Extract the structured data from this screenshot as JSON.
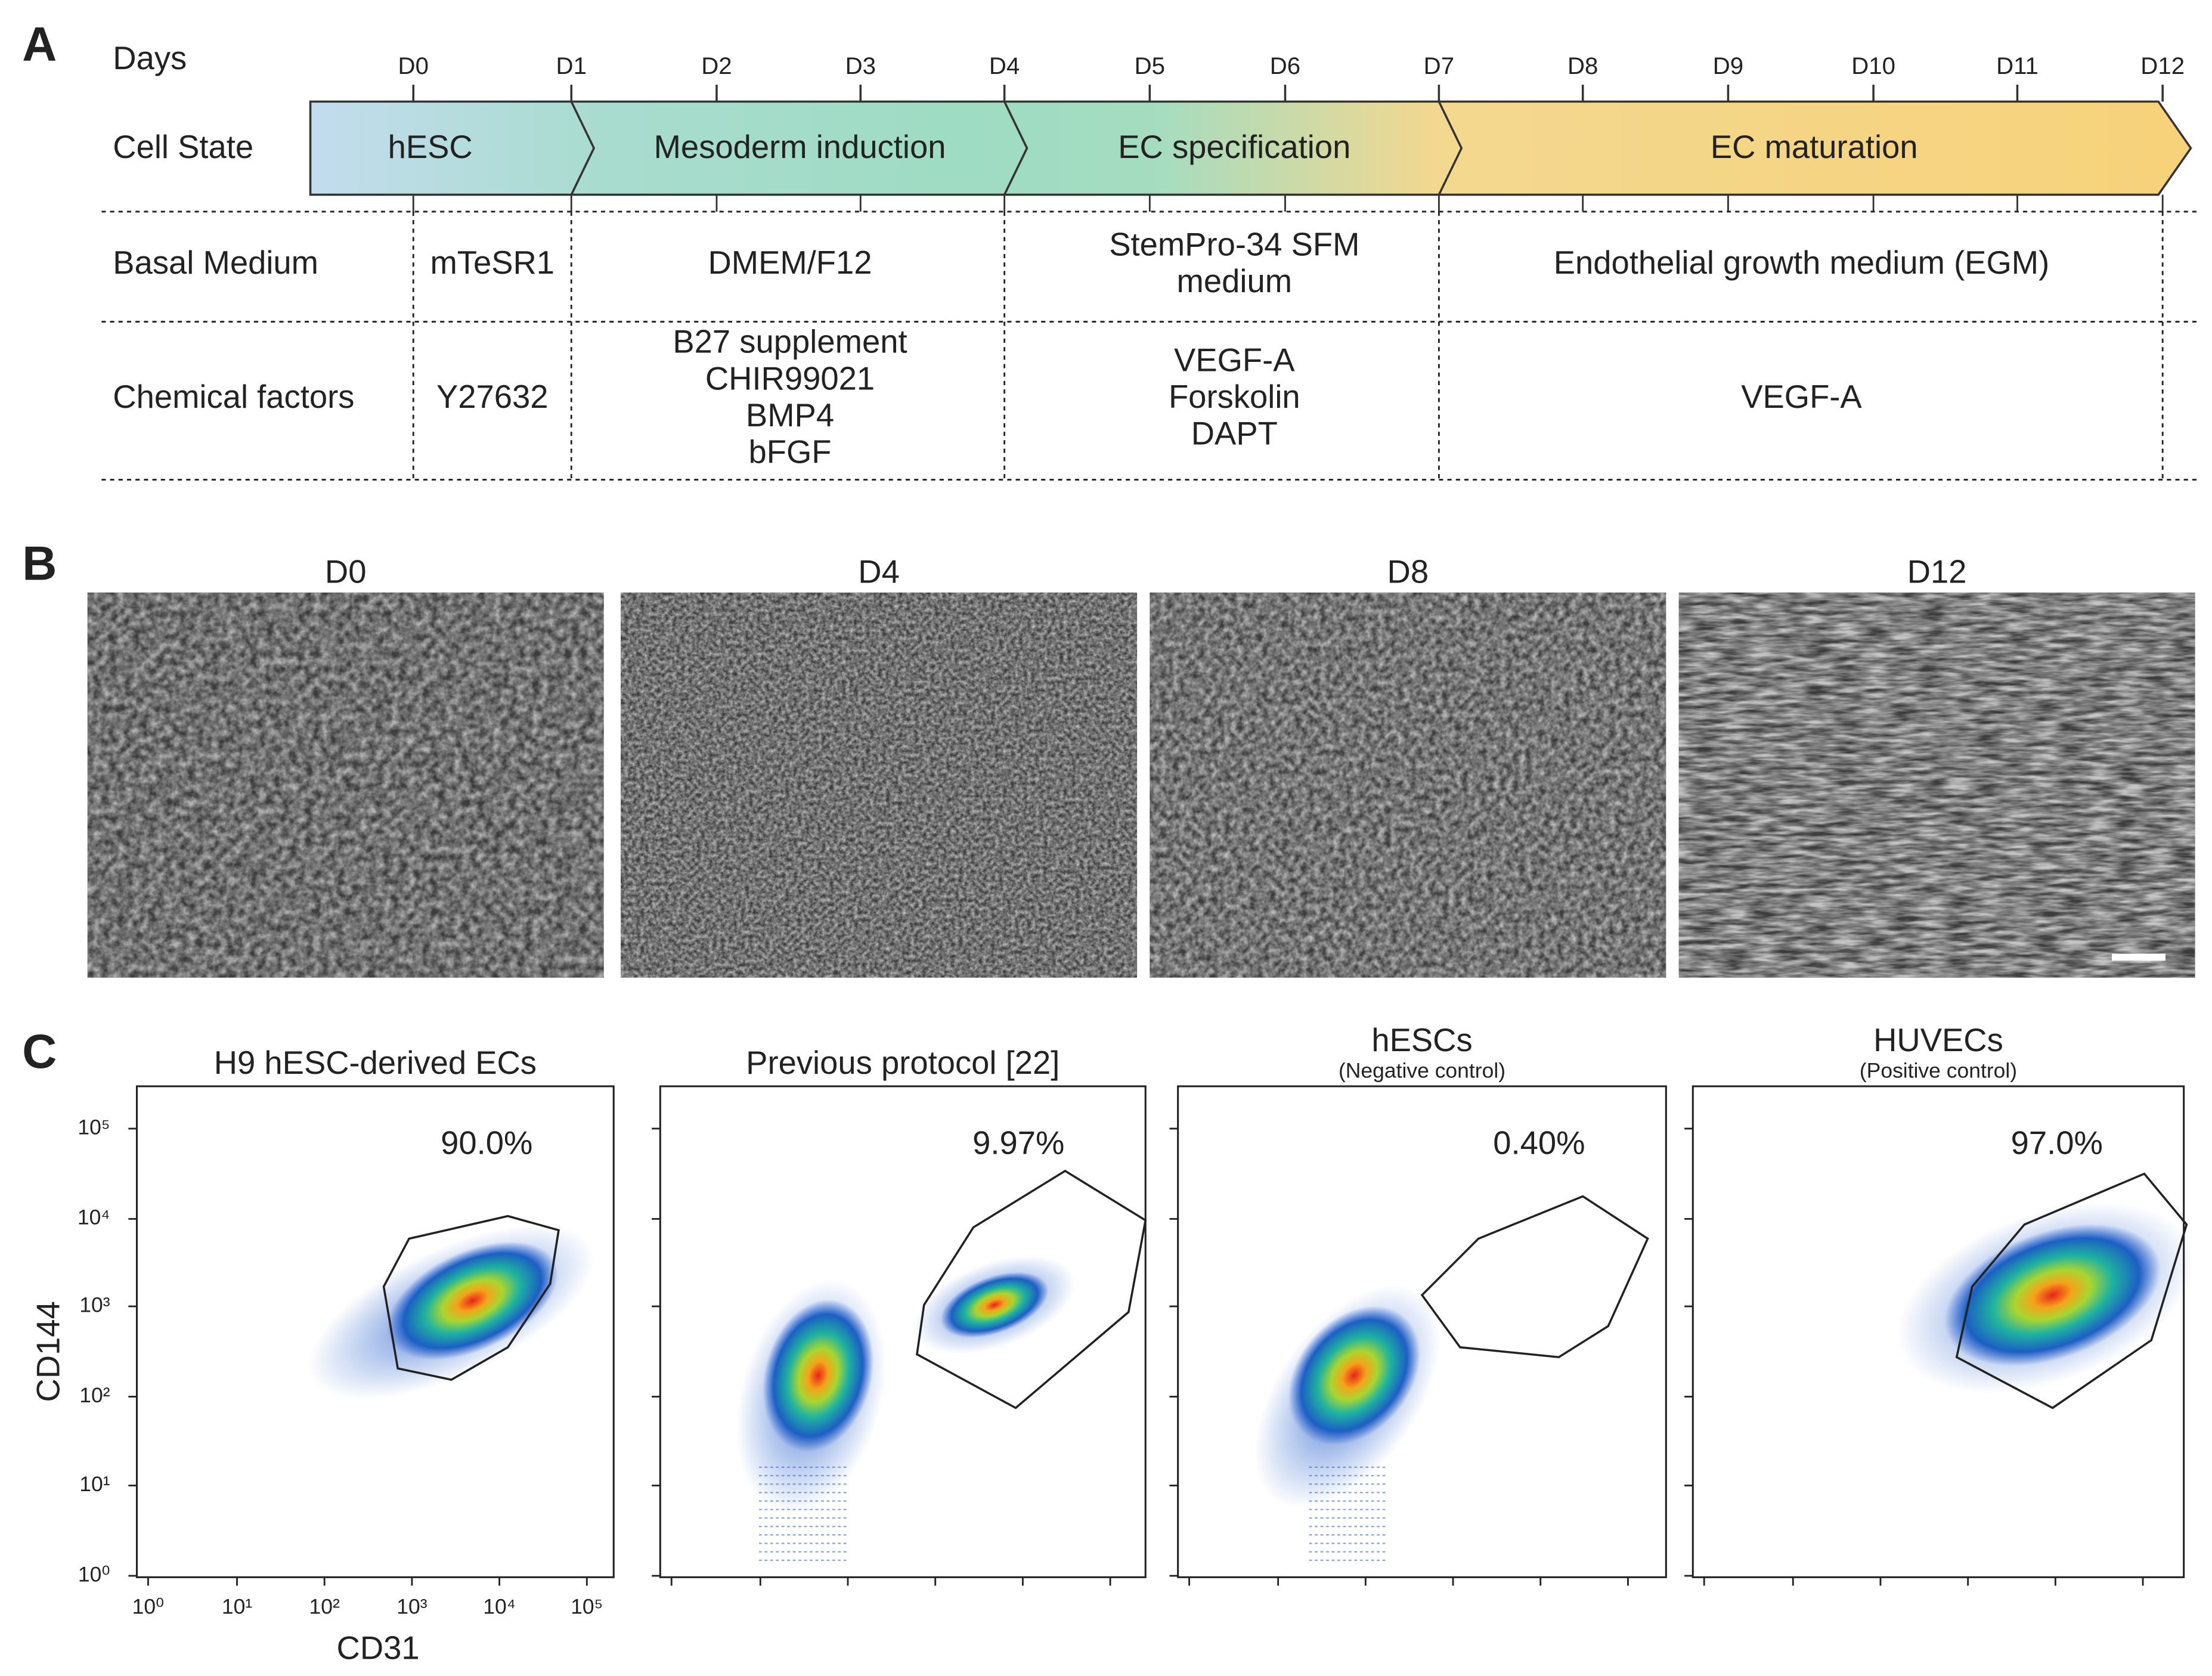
{
  "panel_a": {
    "label": "A",
    "days_label": "Days",
    "days": [
      "D0",
      "D1",
      "D2",
      "D3",
      "D4",
      "D5",
      "D6",
      "D7",
      "D8",
      "D9",
      "D10",
      "D11",
      "D12"
    ],
    "row_labels": {
      "cell_state": "Cell State",
      "basal_medium": "Basal Medium",
      "chemical_factors": "Chemical factors"
    },
    "stages": [
      "hESC",
      "Mesoderm induction",
      "EC specification",
      "EC maturation"
    ],
    "basal_media": [
      [
        "mTeSR1"
      ],
      [
        "DMEM/F12"
      ],
      [
        "StemPro-34 SFM",
        "medium"
      ],
      [
        "Endothelial growth medium (EGM)"
      ]
    ],
    "chemical_factors": [
      [
        "Y27632"
      ],
      [
        "B27 supplement",
        "CHIR99021",
        "BMP4",
        "bFGF"
      ],
      [
        "VEGF-A",
        "Forskolin",
        "DAPT"
      ],
      [
        "VEGF-A"
      ]
    ]
  },
  "panel_b": {
    "label": "B",
    "images": [
      "D0",
      "D4",
      "D8",
      "D12"
    ]
  },
  "panel_c": {
    "label": "C",
    "y_axis_label": "CD144",
    "x_axis_label": "CD31",
    "ticks": [
      "10⁰",
      "10¹",
      "10²",
      "10³",
      "10⁴",
      "10⁵"
    ],
    "plots": [
      {
        "title": "H9 hESC-derived ECs",
        "percent": "90.0%"
      },
      {
        "title": "Previous protocol [22]",
        "percent": "9.97%"
      },
      {
        "title": "hESCs",
        "subtitle": "(Negative control)",
        "percent": "0.40%"
      },
      {
        "title": "HUVECs",
        "subtitle": "(Positive control)",
        "percent": "97.0%"
      }
    ]
  }
}
